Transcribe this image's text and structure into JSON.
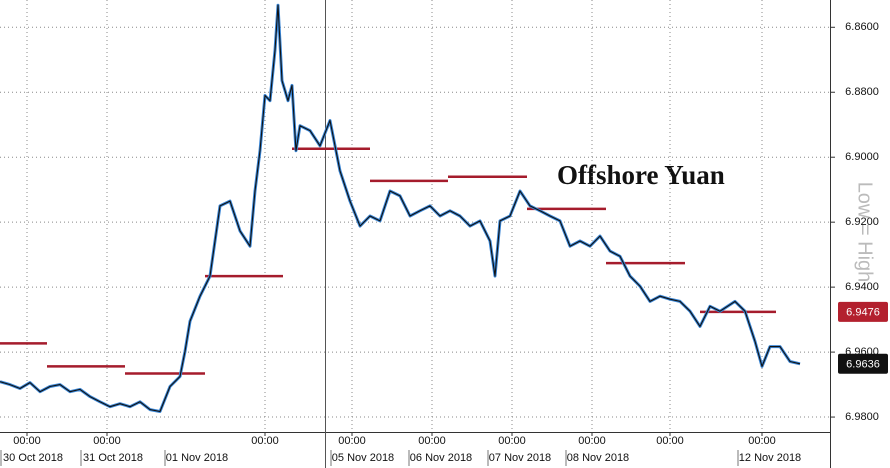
{
  "chart_data": {
    "type": "line",
    "annotation": "Offshore Yuan",
    "y_axis_label": "Low = High",
    "grid": true,
    "xlim": [
      0,
      249
    ],
    "ylim": [
      6.9846,
      6.8516
    ],
    "yticks": [
      {
        "value": 6.86,
        "label": "6.8600"
      },
      {
        "value": 6.88,
        "label": "6.8800"
      },
      {
        "value": 6.9,
        "label": "6.9000"
      },
      {
        "value": 6.92,
        "label": "6.9200"
      },
      {
        "value": 6.94,
        "label": "6.9400"
      },
      {
        "value": 6.96,
        "label": "6.9600"
      },
      {
        "value": 6.98,
        "label": "6.9800"
      }
    ],
    "xticks": [
      {
        "value": 8.1,
        "label": "00:00"
      },
      {
        "value": 32.1,
        "label": "00:00"
      },
      {
        "value": 79.5,
        "label": "00:00"
      },
      {
        "value": 105.6,
        "label": "00:00"
      },
      {
        "value": 129.6,
        "label": "00:00"
      },
      {
        "value": 153.6,
        "label": "00:00"
      },
      {
        "value": 177.6,
        "label": "00:00"
      },
      {
        "value": 201,
        "label": "00:00"
      },
      {
        "value": 228.6,
        "label": "00:00"
      }
    ],
    "date_ticks": [
      {
        "value": 9.9,
        "label": "30 Oct 2018"
      },
      {
        "value": 33.9,
        "label": "31 Oct 2018"
      },
      {
        "value": 59.1,
        "label": "01 Nov 2018"
      },
      {
        "value": 108.9,
        "label": "05 Nov 2018"
      },
      {
        "value": 132.3,
        "label": "06 Nov 2018"
      },
      {
        "value": 156,
        "label": "07 Nov 2018"
      },
      {
        "value": 179.4,
        "label": "08 Nov 2018"
      },
      {
        "value": 231,
        "label": "12 Nov 2018"
      }
    ],
    "x": [
      0,
      3,
      6,
      9,
      12,
      15,
      18,
      21,
      24,
      27,
      30,
      33,
      36,
      39,
      42,
      45,
      48,
      51,
      54,
      55.5,
      57,
      60,
      63,
      64.5,
      66,
      69,
      72,
      75,
      76.5,
      78,
      79.5,
      81,
      82.5,
      83.4,
      84.6,
      86.4,
      87.6,
      88.8,
      90,
      93,
      96,
      99,
      102,
      105,
      108,
      111,
      114,
      117,
      120,
      123,
      126,
      129,
      132,
      135,
      138,
      141,
      144,
      147,
      148.5,
      150,
      153,
      156,
      159,
      162,
      165,
      168,
      171,
      174,
      177,
      180,
      183,
      186,
      189,
      192,
      195,
      198,
      201,
      204,
      207,
      210,
      213,
      216,
      220.5,
      223.5,
      226.5,
      228.6,
      231,
      234,
      237,
      240
    ],
    "series": [
      {
        "color": "#111111",
        "glow": "#3a86d6",
        "values": [
          6.9691,
          6.97,
          6.9712,
          6.9694,
          6.9722,
          6.9706,
          6.97,
          6.9722,
          6.9715,
          6.9737,
          6.9753,
          6.9768,
          6.9759,
          6.9768,
          6.9753,
          6.9777,
          6.9783,
          6.9706,
          6.9675,
          6.9598,
          6.9505,
          6.9428,
          6.9366,
          6.9258,
          6.915,
          6.9135,
          6.9227,
          6.9274,
          6.9104,
          6.898,
          6.881,
          6.8826,
          6.8671,
          6.8532,
          6.8764,
          6.8826,
          6.8779,
          6.898,
          6.8903,
          6.8918,
          6.8965,
          6.8887,
          6.9042,
          6.9135,
          6.9212,
          6.9181,
          6.9196,
          6.9104,
          6.9119,
          6.9181,
          6.9165,
          6.915,
          6.9181,
          6.9165,
          6.9181,
          6.9212,
          6.9196,
          6.9258,
          6.9366,
          6.9196,
          6.9181,
          6.9104,
          6.915,
          6.9165,
          6.9181,
          6.9196,
          6.9274,
          6.9258,
          6.9274,
          6.9243,
          6.9289,
          6.9305,
          6.9366,
          6.9397,
          6.9444,
          6.9428,
          6.9437,
          6.9444,
          6.9474,
          6.9521,
          6.9459,
          6.9474,
          6.9444,
          6.9474,
          6.9567,
          6.9644,
          6.9583,
          6.9583,
          6.9629,
          6.9636
        ]
      }
    ],
    "fixes": {
      "color": "#a51c2c",
      "segments": [
        {
          "x": [
            0,
            14.1
          ],
          "value": 6.9573
        },
        {
          "x": [
            14.1,
            37.5
          ],
          "value": 6.9644
        },
        {
          "x": [
            37.5,
            61.5
          ],
          "value": 6.9666
        },
        {
          "x": [
            61.5,
            84.9
          ],
          "value": 6.9366
        },
        {
          "x": [
            87.6,
            111
          ],
          "value": 6.8974
        },
        {
          "x": [
            111,
            134.4
          ],
          "value": 6.9073
        },
        {
          "x": [
            134.4,
            158.1
          ],
          "value": 6.906
        },
        {
          "x": [
            158.1,
            181.8
          ],
          "value": 6.9159
        },
        {
          "x": [
            181.8,
            205.5
          ],
          "value": 6.9326
        },
        {
          "x": [
            210,
            232.8
          ],
          "value": 6.9476
        }
      ]
    },
    "price_tags": [
      {
        "value": 6.9476,
        "color": "#b3202e"
      },
      {
        "value": 6.9636,
        "color": "#111111"
      }
    ]
  }
}
